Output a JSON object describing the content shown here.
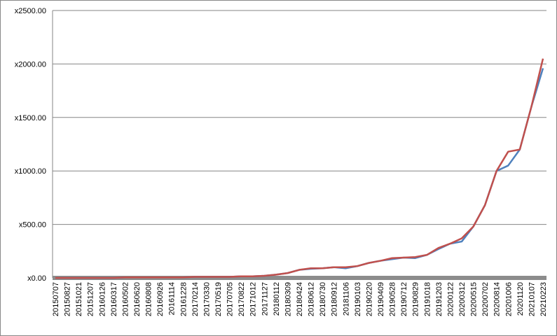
{
  "chart_data": {
    "type": "line",
    "categories": [
      "20150707",
      "20150827",
      "20151021",
      "20151207",
      "20160126",
      "20160317",
      "20160502",
      "20160620",
      "20160808",
      "20160926",
      "20161114",
      "20161228",
      "20170214",
      "20170330",
      "20170519",
      "20170705",
      "20170822",
      "20171012",
      "20171127",
      "20180112",
      "20180309",
      "20180424",
      "20180612",
      "20180730",
      "20180912",
      "20181106",
      "20190103",
      "20190220",
      "20190409",
      "20190528",
      "20190712",
      "20190829",
      "20191018",
      "20191203",
      "20200122",
      "20200312",
      "20200515",
      "20200702",
      "20200814",
      "20201006",
      "20201120",
      "20210107",
      "20210223"
    ],
    "series": [
      {
        "color": "#4f81bd",
        "values": [
          0,
          0,
          0,
          0,
          0,
          0,
          5,
          5,
          5,
          5,
          5,
          5,
          10,
          10,
          10,
          10,
          15,
          15,
          20,
          30,
          45,
          75,
          85,
          90,
          100,
          90,
          110,
          140,
          160,
          175,
          190,
          185,
          215,
          270,
          320,
          340,
          480,
          680,
          1000,
          1050,
          1200,
          1600,
          1960
        ]
      },
      {
        "color": "#c0504d",
        "values": [
          0,
          0,
          0,
          0,
          0,
          0,
          5,
          5,
          5,
          5,
          5,
          5,
          10,
          10,
          10,
          10,
          15,
          15,
          20,
          30,
          45,
          75,
          90,
          90,
          100,
          100,
          110,
          140,
          160,
          185,
          190,
          195,
          215,
          280,
          320,
          370,
          480,
          680,
          1000,
          1180,
          1200,
          1600,
          2050
        ]
      }
    ],
    "ylim": [
      0,
      2500
    ],
    "yticks": [
      {
        "value": 0,
        "label": "x0.00"
      },
      {
        "value": 500,
        "label": "x500.00"
      },
      {
        "value": 1000,
        "label": "x1000.00"
      },
      {
        "value": 1500,
        "label": "x1500.00"
      },
      {
        "value": 2000,
        "label": "x2000.00"
      },
      {
        "value": 2500,
        "label": "x2500.00"
      }
    ],
    "grid": true
  }
}
